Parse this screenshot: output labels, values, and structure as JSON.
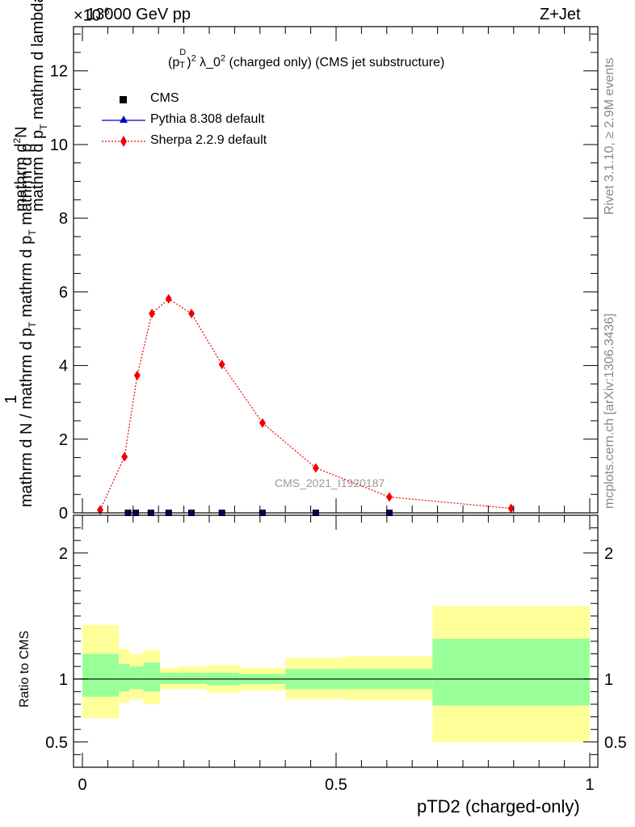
{
  "header": {
    "left": "13000 GeV pp",
    "right": "Z+Jet",
    "exponent_label": "×10",
    "exponent_power": "-6"
  },
  "side_labels": {
    "rivet": "Rivet 3.1.10, ≥ 2.9M events",
    "mcplots": "mcplots.cern.ch [arXiv:1306.3436]"
  },
  "colors": {
    "cms": "#000000",
    "pythia": "#0000cc",
    "sherpa": "#ee0000",
    "band_outer": "#ffff99",
    "band_inner": "#99ff99"
  },
  "chart_data": [
    {
      "type": "line",
      "title": "(p_T^D)^2 λ_0^2 (charged only) (CMS jet substructure)",
      "title_parts": {
        "p": "(p",
        "sub": "T",
        "sup": "D",
        "close": ")",
        "sup2": "2",
        "lambda": " λ_0",
        "sup3": "2",
        "rest": " (charged only) (CMS jet substructure)"
      },
      "ylabel": "1 / (mathrm d N / mathrm d p_T mathrm d p_T mathrm d lambda) · mathrm d²N / mathrm d p_T mathrm d lambda",
      "ylabel_parts": {
        "num_top": "mathrm d",
        "num_sup": "2",
        "num_n": "N",
        "num_bottom_a": "mathrm d p",
        "num_bottom_sub": "T",
        "num_bottom_b": " mathrm d lambda",
        "one": "1",
        "den_a": "mathrm d N / mathrm d p",
        "den_sub": "T",
        "den_b": " mathrm d p",
        "den_sub2": "T",
        "den_c": " mathrm d p"
      },
      "xlim": [
        0,
        1
      ],
      "ylim": [
        0,
        13.2
      ],
      "y_scale_exponent": -6,
      "yticks": [
        0,
        2,
        4,
        6,
        8,
        10,
        12
      ],
      "watermark": "CMS_2021_I1920187",
      "legend_position": "top-left",
      "series": [
        {
          "name": "CMS",
          "marker": "square",
          "x": [
            0.09,
            0.105,
            0.135,
            0.17,
            0.215,
            0.275,
            0.355,
            0.46,
            0.605
          ],
          "y": [
            0,
            0,
            0,
            0,
            0,
            0,
            0,
            0,
            0
          ]
        },
        {
          "name": "Pythia 8.308 default",
          "marker": "triangle",
          "x": [
            0.09,
            0.105,
            0.135,
            0.17,
            0.215,
            0.275,
            0.355,
            0.46,
            0.605
          ],
          "y": [
            0,
            0,
            0,
            0,
            0,
            0,
            0,
            0,
            0
          ]
        },
        {
          "name": "Sherpa 2.2.9 default",
          "marker": "diamond",
          "line": "dotted",
          "x": [
            0.035,
            0.083,
            0.108,
            0.137,
            0.17,
            0.215,
            0.275,
            0.355,
            0.46,
            0.605,
            0.845
          ],
          "y": [
            0.08,
            1.52,
            3.73,
            5.41,
            5.81,
            5.41,
            4.03,
            2.44,
            1.22,
            0.43,
            0.12
          ]
        }
      ]
    },
    {
      "type": "area",
      "ylabel": "Ratio to CMS",
      "xlabel": "pTD2 (charged-only)",
      "xlim": [
        0,
        1
      ],
      "ylim": [
        0.3,
        2.3
      ],
      "yticks": [
        0.5,
        1,
        2
      ],
      "xticks": [
        0,
        0.5,
        1
      ],
      "reference_line": 1,
      "bands": [
        {
          "x0": 0.0,
          "x1": 0.072,
          "outer": [
            0.69,
            1.43
          ],
          "inner": [
            0.86,
            1.2
          ]
        },
        {
          "x0": 0.072,
          "x1": 0.093,
          "outer": [
            0.81,
            1.24
          ],
          "inner": [
            0.9,
            1.12
          ]
        },
        {
          "x0": 0.093,
          "x1": 0.12,
          "outer": [
            0.84,
            1.2
          ],
          "inner": [
            0.92,
            1.1
          ]
        },
        {
          "x0": 0.12,
          "x1": 0.153,
          "outer": [
            0.8,
            1.23
          ],
          "inner": [
            0.9,
            1.13
          ]
        },
        {
          "x0": 0.153,
          "x1": 0.19,
          "outer": [
            0.92,
            1.09
          ],
          "inner": [
            0.96,
            1.05
          ]
        },
        {
          "x0": 0.19,
          "x1": 0.245,
          "outer": [
            0.92,
            1.1
          ],
          "inner": [
            0.96,
            1.05
          ]
        },
        {
          "x0": 0.245,
          "x1": 0.31,
          "outer": [
            0.89,
            1.11
          ],
          "inner": [
            0.95,
            1.05
          ]
        },
        {
          "x0": 0.31,
          "x1": 0.4,
          "outer": [
            0.91,
            1.09
          ],
          "inner": [
            0.96,
            1.04
          ]
        },
        {
          "x0": 0.4,
          "x1": 0.52,
          "outer": [
            0.84,
            1.17
          ],
          "inner": [
            0.92,
            1.08
          ]
        },
        {
          "x0": 0.52,
          "x1": 0.69,
          "outer": [
            0.83,
            1.18
          ],
          "inner": [
            0.92,
            1.08
          ]
        },
        {
          "x0": 0.69,
          "x1": 1.0,
          "outer": [
            0.5,
            1.58
          ],
          "inner": [
            0.79,
            1.32
          ]
        }
      ]
    }
  ]
}
